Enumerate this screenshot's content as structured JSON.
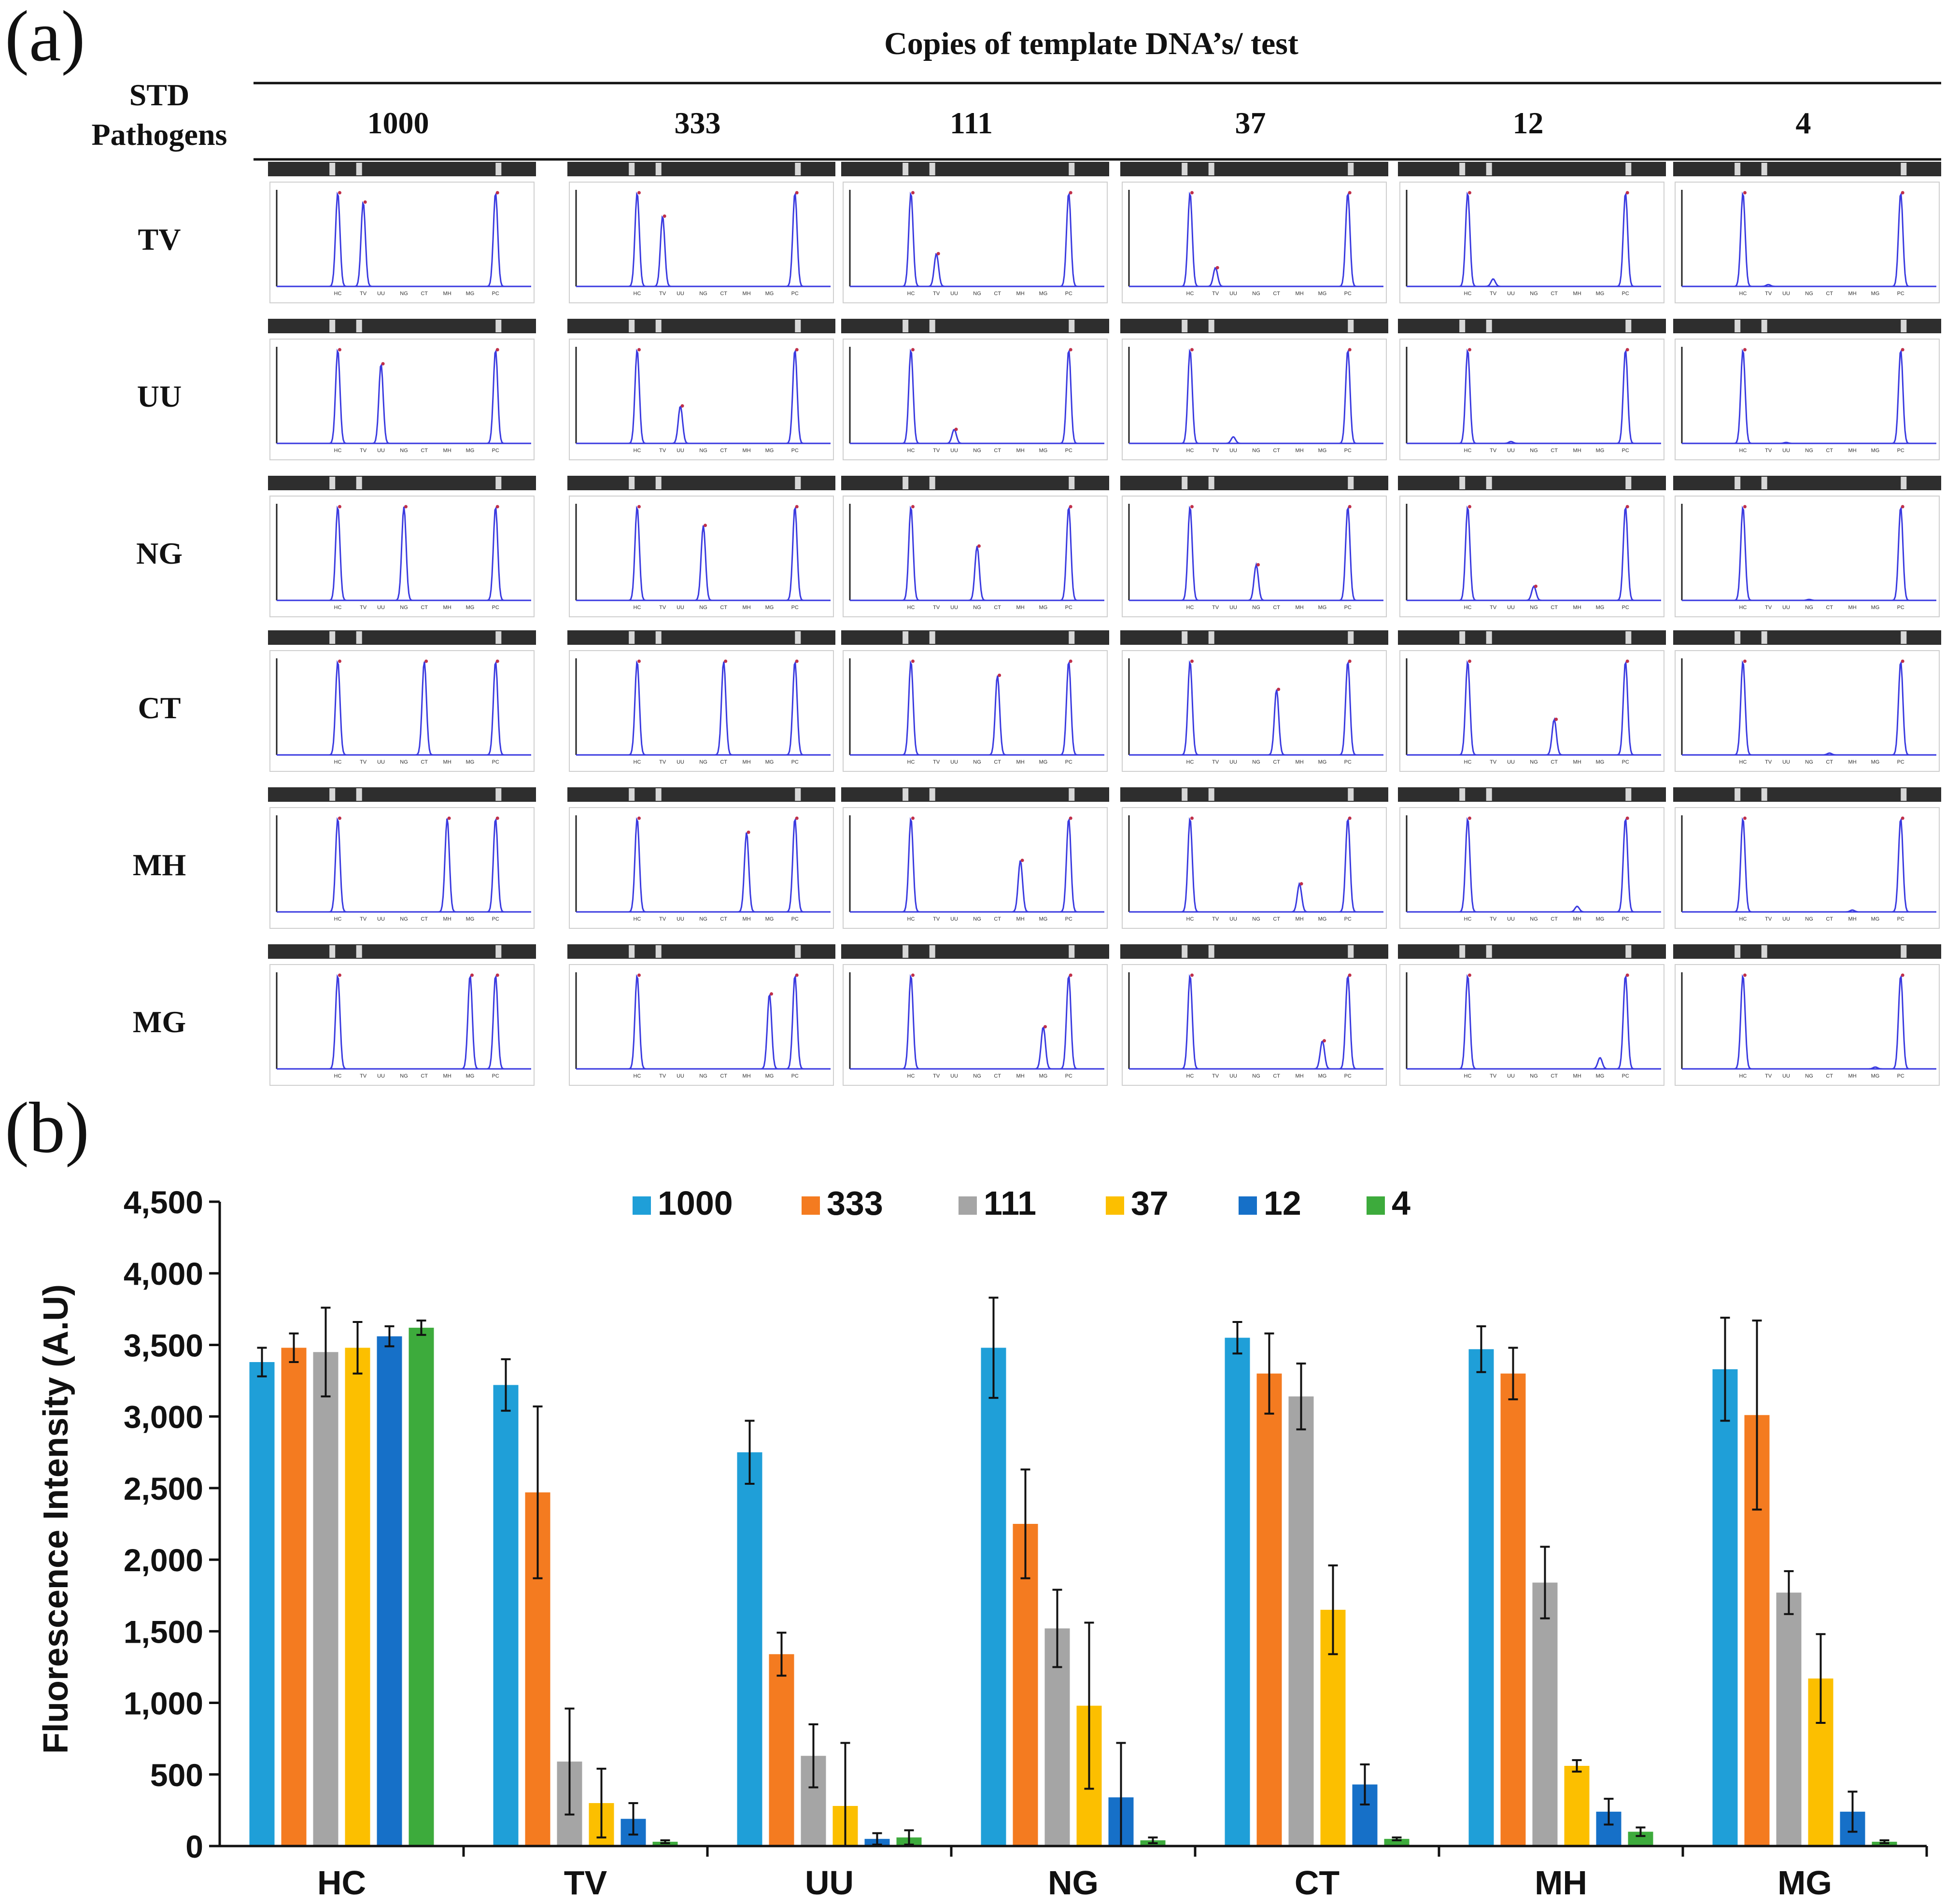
{
  "panel_a": {
    "label": "(a)",
    "header_title": "Copies of template DNA’s/ test",
    "row_header": "STD",
    "row_header_2": "Pathogens",
    "columns": [
      "1000",
      "333",
      "111",
      "37",
      "12",
      "4"
    ],
    "rows": [
      "TV",
      "UU",
      "NG",
      "CT",
      "MH",
      "MG"
    ],
    "mini_x_labels": [
      "HC",
      "TV",
      "UU",
      "NG",
      "CT",
      "MH",
      "MG",
      "PC"
    ],
    "trace_color": "#3a3ae0",
    "peak_marker_color": "#c0304a",
    "peak_heights": [
      [
        [
          1,
          0.9,
          0,
          0,
          0,
          0,
          0,
          1
        ],
        [
          1,
          0.75,
          0,
          0,
          0,
          0,
          0,
          1
        ],
        [
          1,
          0.35,
          0,
          0,
          0,
          0,
          0,
          1
        ],
        [
          1,
          0.2,
          0,
          0,
          0,
          0,
          0,
          1
        ],
        [
          1,
          0.08,
          0,
          0,
          0,
          0,
          0,
          1
        ],
        [
          1,
          0.02,
          0,
          0,
          0,
          0,
          0,
          1
        ]
      ],
      [
        [
          1,
          0,
          0.85,
          0,
          0,
          0,
          0,
          1
        ],
        [
          1,
          0,
          0.4,
          0,
          0,
          0,
          0,
          1
        ],
        [
          1,
          0,
          0.15,
          0,
          0,
          0,
          0,
          1
        ],
        [
          1,
          0,
          0.07,
          0,
          0,
          0,
          0,
          1
        ],
        [
          1,
          0,
          0.02,
          0,
          0,
          0,
          0,
          1
        ],
        [
          1,
          0,
          0.01,
          0,
          0,
          0,
          0,
          1
        ]
      ],
      [
        [
          1,
          0,
          0,
          1,
          0,
          0,
          0,
          1
        ],
        [
          1,
          0,
          0,
          0.8,
          0,
          0,
          0,
          1
        ],
        [
          1,
          0,
          0,
          0.58,
          0,
          0,
          0,
          1
        ],
        [
          1,
          0,
          0,
          0.38,
          0,
          0,
          0,
          1
        ],
        [
          1,
          0,
          0,
          0.15,
          0,
          0,
          0,
          1
        ],
        [
          1,
          0,
          0,
          0.01,
          0,
          0,
          0,
          1
        ]
      ],
      [
        [
          1,
          0,
          0,
          0,
          1,
          0,
          0,
          1
        ],
        [
          1,
          0,
          0,
          0,
          1,
          0,
          0,
          1
        ],
        [
          1,
          0,
          0,
          0,
          0.85,
          0,
          0,
          1
        ],
        [
          1,
          0,
          0,
          0,
          0.7,
          0,
          0,
          1
        ],
        [
          1,
          0,
          0,
          0,
          0.38,
          0,
          0,
          1
        ],
        [
          1,
          0,
          0,
          0,
          0.02,
          0,
          0,
          1
        ]
      ],
      [
        [
          1,
          0,
          0,
          0,
          0,
          1,
          0,
          1
        ],
        [
          1,
          0,
          0,
          0,
          0,
          0.85,
          0,
          1
        ],
        [
          1,
          0,
          0,
          0,
          0,
          0.55,
          0,
          1
        ],
        [
          1,
          0,
          0,
          0,
          0,
          0.3,
          0,
          1
        ],
        [
          1,
          0,
          0,
          0,
          0,
          0.06,
          0,
          1
        ],
        [
          1,
          0,
          0,
          0,
          0,
          0.02,
          0,
          1
        ]
      ],
      [
        [
          1,
          0,
          0,
          0,
          0,
          0,
          1,
          1
        ],
        [
          1,
          0,
          0,
          0,
          0,
          0,
          0.8,
          1
        ],
        [
          1,
          0,
          0,
          0,
          0,
          0,
          0.45,
          1
        ],
        [
          1,
          0,
          0,
          0,
          0,
          0,
          0.3,
          1
        ],
        [
          1,
          0,
          0,
          0,
          0,
          0,
          0.12,
          1
        ],
        [
          1,
          0,
          0,
          0,
          0,
          0,
          0.02,
          1
        ]
      ]
    ]
  },
  "panel_b": {
    "label": "(b)"
  },
  "chart_data": {
    "type": "bar",
    "title": "",
    "xlabel": "",
    "ylabel": "Fluorescence Intensity (A.U)",
    "ylim": [
      0,
      4500
    ],
    "yticks": [
      0,
      500,
      1000,
      1500,
      2000,
      2500,
      3000,
      3500,
      4000,
      4500
    ],
    "ytick_labels": [
      "0",
      "500",
      "1,000",
      "1,500",
      "2,000",
      "2,500",
      "3,000",
      "3,500",
      "4,000",
      "4,500"
    ],
    "categories": [
      "HC",
      "TV",
      "UU",
      "NG",
      "CT",
      "MH",
      "MG"
    ],
    "legend_position": "top",
    "series": [
      {
        "name": "1000",
        "color": "#1f9fd8",
        "values": [
          3380,
          3220,
          2750,
          3480,
          3550,
          3470,
          3330
        ],
        "errors": [
          100,
          180,
          220,
          350,
          110,
          160,
          360
        ]
      },
      {
        "name": "333",
        "color": "#f47b20",
        "values": [
          3480,
          2470,
          1340,
          2250,
          3300,
          3300,
          3010
        ],
        "errors": [
          100,
          600,
          150,
          380,
          280,
          180,
          660
        ]
      },
      {
        "name": "111",
        "color": "#a5a5a5",
        "values": [
          3450,
          590,
          630,
          1520,
          3140,
          1840,
          1770
        ],
        "errors": [
          310,
          370,
          220,
          270,
          230,
          250,
          150
        ]
      },
      {
        "name": "37",
        "color": "#fcbf00",
        "values": [
          3480,
          300,
          280,
          980,
          1650,
          560,
          1170
        ],
        "errors": [
          180,
          240,
          440,
          580,
          310,
          40,
          310
        ]
      },
      {
        "name": "12",
        "color": "#1670c8",
        "values": [
          3560,
          190,
          50,
          340,
          430,
          240,
          240
        ],
        "errors": [
          70,
          110,
          40,
          380,
          140,
          90,
          140
        ]
      },
      {
        "name": "4",
        "color": "#3dab3c",
        "values": [
          3620,
          30,
          60,
          40,
          50,
          100,
          30
        ],
        "errors": [
          50,
          10,
          50,
          20,
          10,
          30,
          10
        ]
      }
    ]
  }
}
